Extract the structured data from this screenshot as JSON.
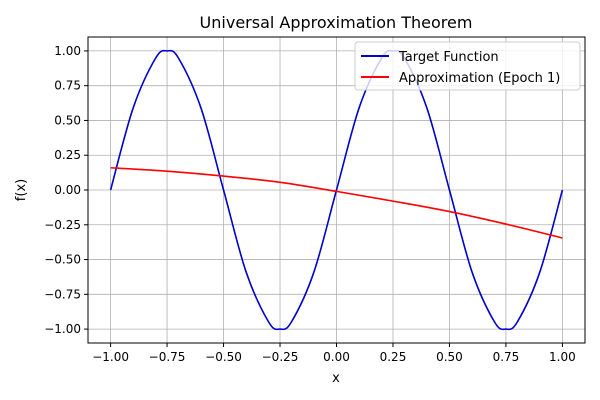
{
  "chart_data": {
    "type": "line",
    "title": "Universal Approximation Theorem",
    "xlabel": "x",
    "ylabel": "f(x)",
    "xlim": [
      -1.1,
      1.1
    ],
    "ylim": [
      -1.1,
      1.1
    ],
    "x_ticks": [
      -1.0,
      -0.75,
      -0.5,
      -0.25,
      0.0,
      0.25,
      0.5,
      0.75,
      1.0
    ],
    "x_tick_labels": [
      "−1.00",
      "−0.75",
      "−0.50",
      "−0.25",
      "0.00",
      "0.25",
      "0.50",
      "0.75",
      "1.00"
    ],
    "y_ticks": [
      -1.0,
      -0.75,
      -0.5,
      -0.25,
      0.0,
      0.25,
      0.5,
      0.75,
      1.0
    ],
    "y_tick_labels": [
      "−1.00",
      "−0.75",
      "−0.50",
      "−0.25",
      "0.00",
      "0.25",
      "0.50",
      "0.75",
      "1.00"
    ],
    "grid": true,
    "legend_position": "top-right",
    "series": [
      {
        "name": "Target Function",
        "color": "#0000cd",
        "x": [
          -1.0,
          -0.9,
          -0.8,
          -0.75,
          -0.7,
          -0.6,
          -0.5,
          -0.4,
          -0.3,
          -0.25,
          -0.2,
          -0.1,
          0.0,
          0.1,
          0.2,
          0.25,
          0.3,
          0.4,
          0.5,
          0.6,
          0.7,
          0.75,
          0.8,
          0.9,
          1.0
        ],
        "y": [
          0.0,
          0.59,
          0.95,
          1.0,
          0.95,
          0.59,
          0.0,
          -0.59,
          -0.95,
          -1.0,
          -0.95,
          -0.59,
          0.0,
          0.59,
          0.95,
          1.0,
          0.95,
          0.59,
          0.0,
          -0.59,
          -0.95,
          -1.0,
          -0.95,
          -0.59,
          0.0
        ]
      },
      {
        "name": "Approximation (Epoch 1)",
        "color": "#ff0000",
        "x": [
          -1.0,
          -0.75,
          -0.5,
          -0.25,
          0.0,
          0.25,
          0.5,
          0.75,
          1.0
        ],
        "y": [
          0.16,
          0.135,
          0.1,
          0.055,
          -0.01,
          -0.08,
          -0.155,
          -0.245,
          -0.345
        ]
      }
    ]
  }
}
